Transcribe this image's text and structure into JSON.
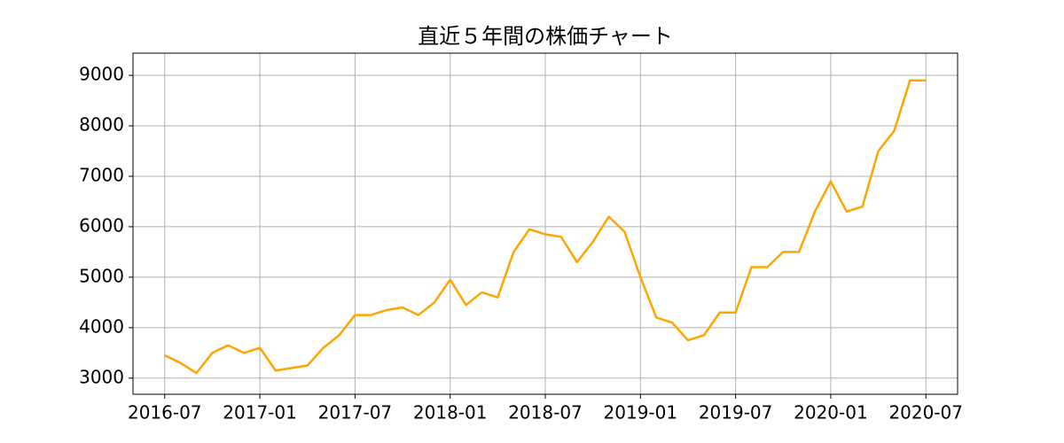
{
  "chart_data": {
    "type": "line",
    "title": "直近５年間の株価チャート",
    "x": [
      "2016-07",
      "2016-08",
      "2016-09",
      "2016-10",
      "2016-11",
      "2016-12",
      "2017-01",
      "2017-02",
      "2017-03",
      "2017-04",
      "2017-05",
      "2017-06",
      "2017-07",
      "2017-08",
      "2017-09",
      "2017-10",
      "2017-11",
      "2017-12",
      "2018-01",
      "2018-02",
      "2018-03",
      "2018-04",
      "2018-05",
      "2018-06",
      "2018-07",
      "2018-08",
      "2018-09",
      "2018-10",
      "2018-11",
      "2018-12",
      "2019-01",
      "2019-02",
      "2019-03",
      "2019-04",
      "2019-05",
      "2019-06",
      "2019-07",
      "2019-08",
      "2019-09",
      "2019-10",
      "2019-11",
      "2019-12",
      "2020-01",
      "2020-02",
      "2020-03",
      "2020-04",
      "2020-05",
      "2020-06",
      "2020-07"
    ],
    "series": [
      {
        "name": "株価",
        "color": "#ffa500",
        "values": [
          3450,
          3300,
          3100,
          3500,
          3650,
          3500,
          3600,
          3150,
          3200,
          3250,
          3600,
          3850,
          4250,
          4250,
          4350,
          4400,
          4250,
          4500,
          4950,
          4450,
          4700,
          4600,
          5500,
          5950,
          5850,
          5800,
          5300,
          5700,
          6200,
          5900,
          5000,
          4200,
          4100,
          3750,
          3850,
          4300,
          4300,
          5200,
          5200,
          5500,
          5500,
          6300,
          6900,
          6300,
          6400,
          7500,
          7900,
          8900,
          8900
        ]
      }
    ],
    "xlim": [
      "2016-05",
      "2020-09"
    ],
    "xticks": [
      "2016-07",
      "2017-01",
      "2017-07",
      "2018-01",
      "2018-07",
      "2019-01",
      "2019-07",
      "2020-01",
      "2020-07"
    ],
    "ylim": [
      2680,
      9440
    ],
    "yticks": [
      3000,
      4000,
      5000,
      6000,
      7000,
      8000,
      9000
    ],
    "grid": true
  }
}
